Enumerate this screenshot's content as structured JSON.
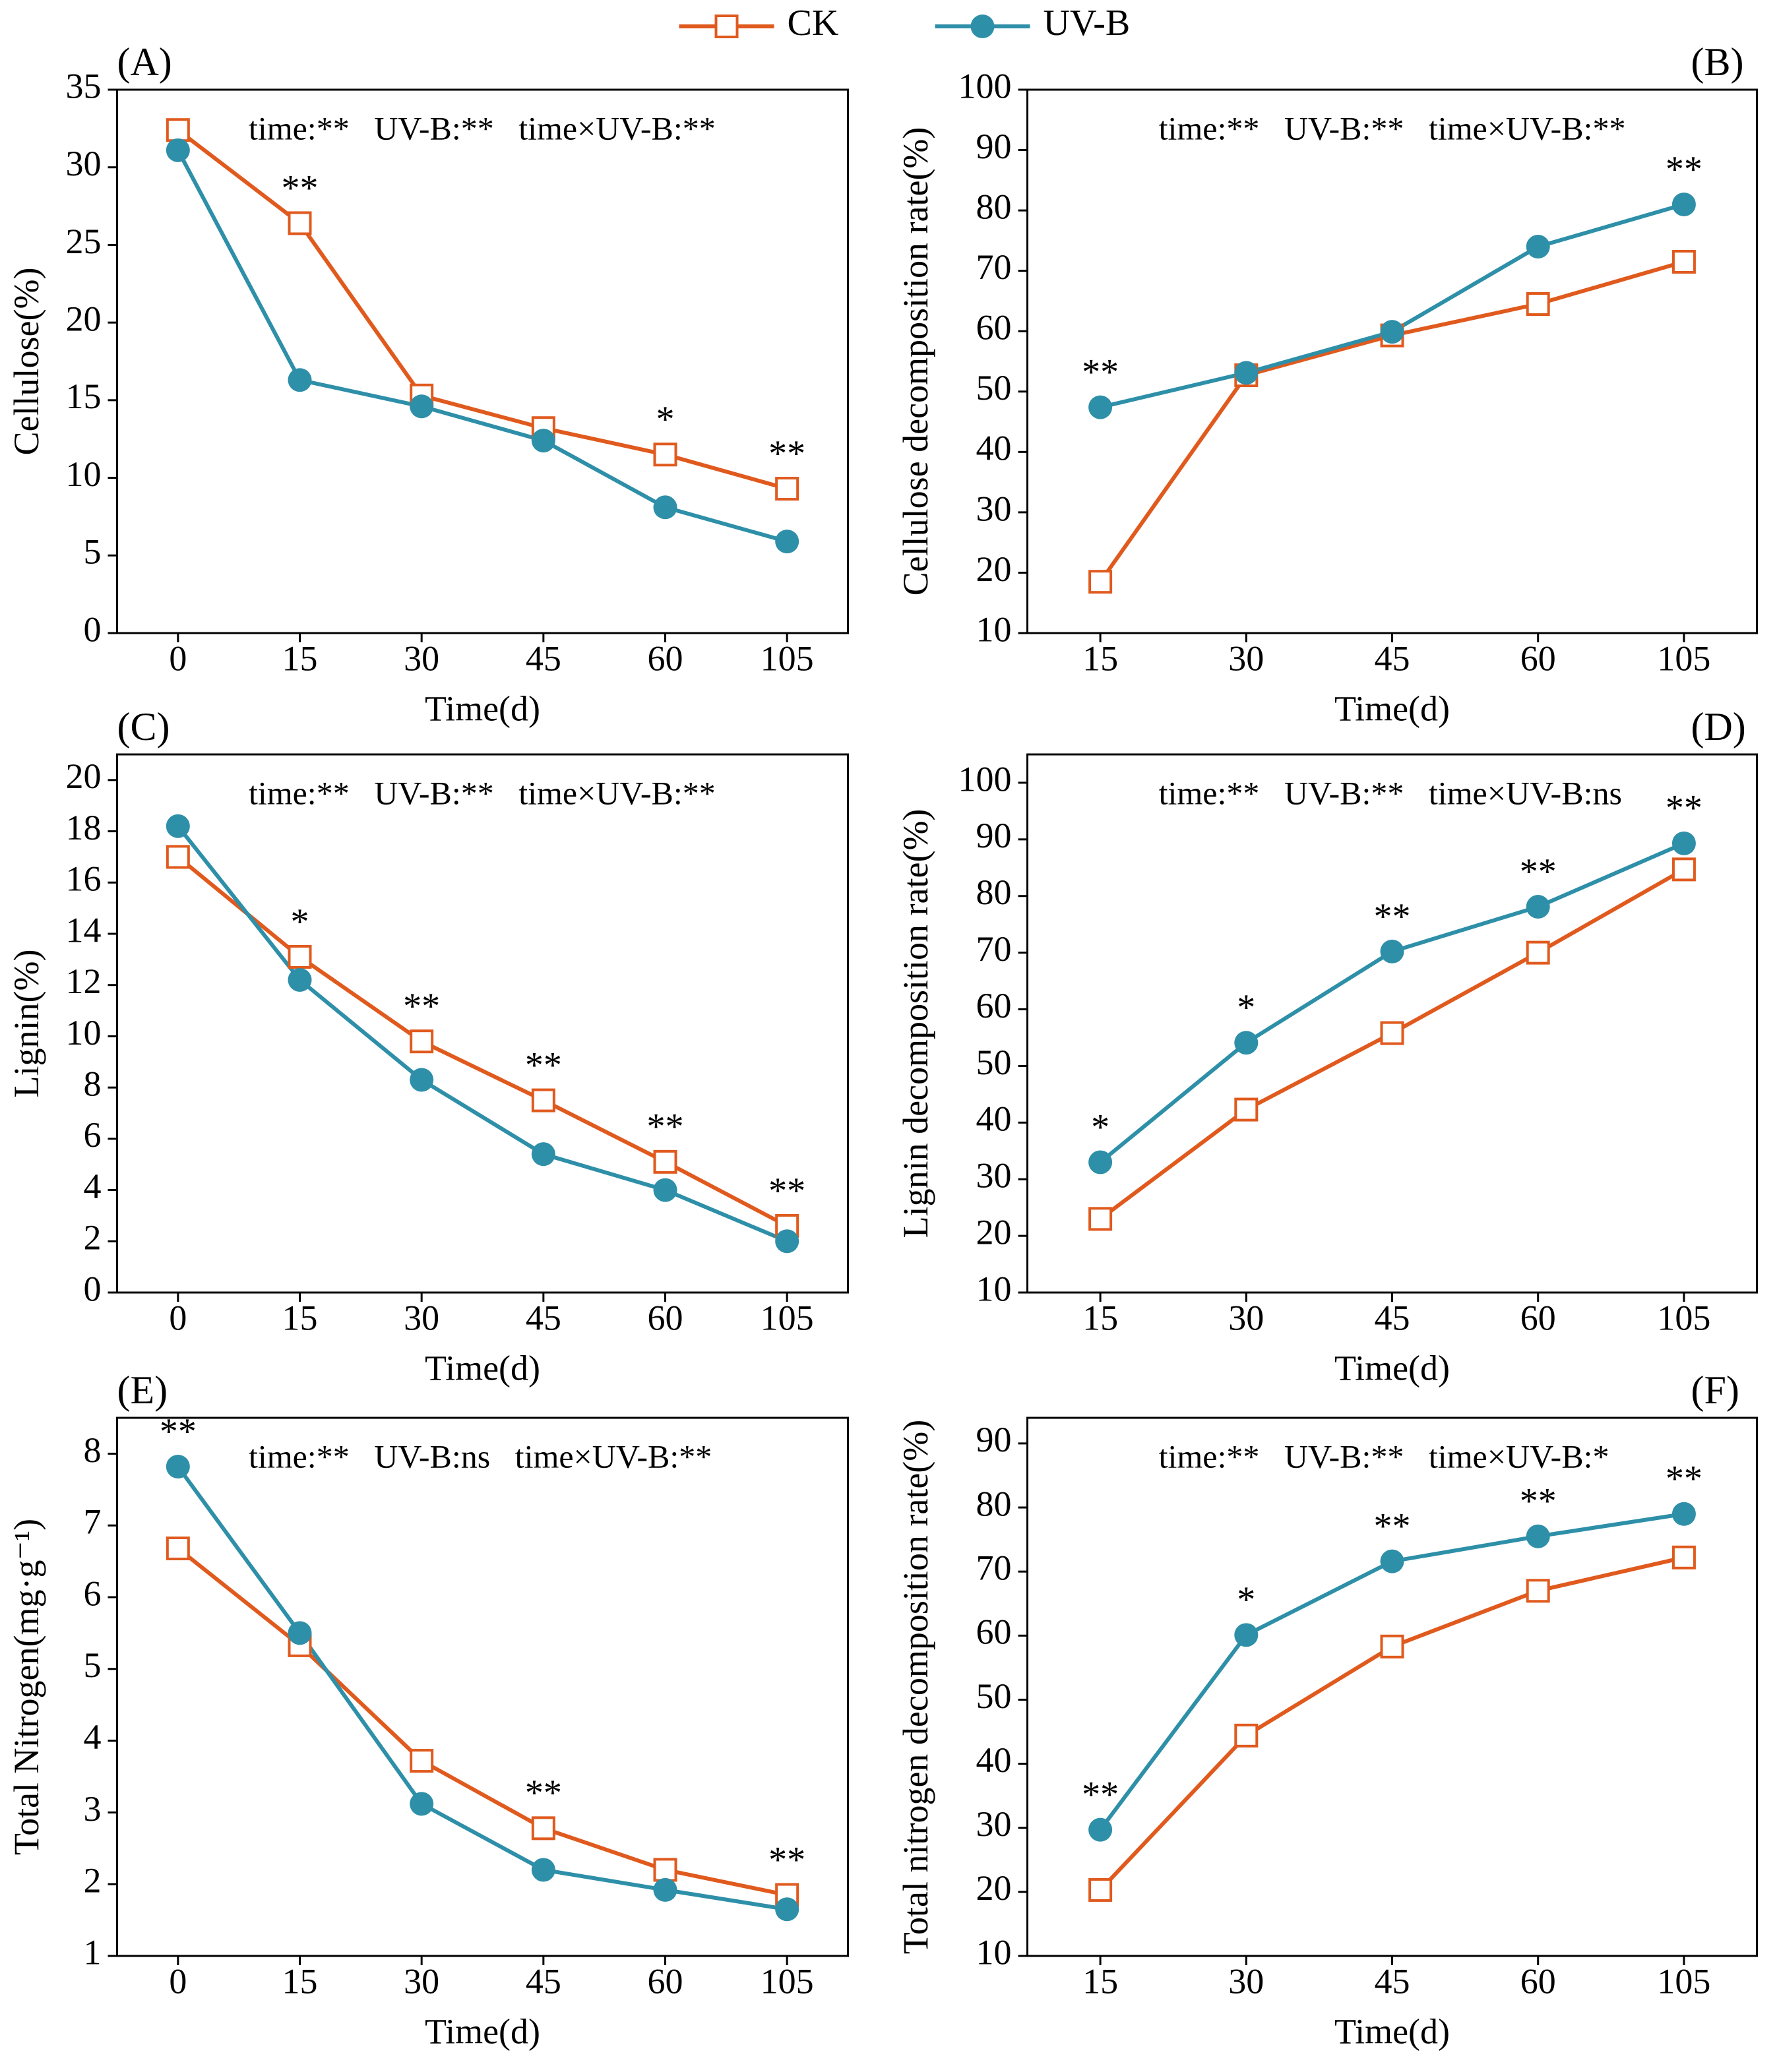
{
  "chart_data": [
    {
      "type": "line",
      "panel": "(A)",
      "stats": "time:**   UV-B:**   time×UV-B:**",
      "xlabel": "Time(d)",
      "ylabel": "Cellulose(%)",
      "categories": [
        "0",
        "15",
        "30",
        "45",
        "60",
        "105"
      ],
      "ylim": [
        0,
        35
      ],
      "yticks": [
        0,
        5,
        10,
        15,
        20,
        25,
        30,
        35
      ],
      "series": [
        {
          "name": "CK",
          "color": "#e05a1e",
          "values": [
            32.4,
            26.4,
            15.3,
            13.2,
            11.5,
            9.3
          ]
        },
        {
          "name": "UV-B",
          "color": "#2e8fa8",
          "values": [
            31.1,
            16.3,
            14.6,
            12.4,
            8.1,
            5.9
          ]
        }
      ],
      "significance": [
        null,
        "**",
        null,
        null,
        "*",
        "**"
      ]
    },
    {
      "type": "line",
      "panel": "(B)",
      "stats": "time:**   UV-B:**   time×UV-B:**",
      "xlabel": "Time(d)",
      "ylabel": "Cellulose decomposition rate(%)",
      "categories": [
        "15",
        "30",
        "45",
        "60",
        "105"
      ],
      "ylim": [
        10,
        100
      ],
      "yticks": [
        10,
        20,
        30,
        40,
        50,
        60,
        70,
        80,
        90,
        100
      ],
      "series": [
        {
          "name": "CK",
          "color": "#e05a1e",
          "values": [
            18.5,
            52.7,
            59.3,
            64.5,
            71.5
          ]
        },
        {
          "name": "UV-B",
          "color": "#2e8fa8",
          "values": [
            47.4,
            53.1,
            59.9,
            74,
            81
          ]
        }
      ],
      "significance": [
        "**",
        null,
        null,
        null,
        "**"
      ]
    },
    {
      "type": "line",
      "panel": "(C)",
      "stats": "time:**   UV-B:**   time×UV-B:**",
      "xlabel": "Time(d)",
      "ylabel": "Lignin(%)",
      "categories": [
        "0",
        "15",
        "30",
        "45",
        "60",
        "105"
      ],
      "ylim": [
        0,
        21
      ],
      "yticks": [
        0,
        2,
        4,
        6,
        8,
        10,
        12,
        14,
        16,
        18,
        20
      ],
      "series": [
        {
          "name": "CK",
          "color": "#e05a1e",
          "values": [
            17,
            13.1,
            9.8,
            7.5,
            5.1,
            2.6
          ]
        },
        {
          "name": "UV-B",
          "color": "#2e8fa8",
          "values": [
            18.2,
            12.2,
            8.3,
            5.4,
            4,
            2
          ]
        }
      ],
      "significance": [
        null,
        "*",
        "**",
        "**",
        "**",
        "**"
      ]
    },
    {
      "type": "line",
      "panel": "(D)",
      "stats": "time:**   UV-B:**   time×UV-B:ns",
      "xlabel": "Time(d)",
      "ylabel": "Lignin decomposition rate(%)",
      "categories": [
        "15",
        "30",
        "45",
        "60",
        "105"
      ],
      "ylim": [
        10,
        105
      ],
      "yticks": [
        10,
        20,
        30,
        40,
        50,
        60,
        70,
        80,
        90,
        100
      ],
      "series": [
        {
          "name": "CK",
          "color": "#e05a1e",
          "values": [
            23,
            42.3,
            55.8,
            70,
            84.7
          ]
        },
        {
          "name": "UV-B",
          "color": "#2e8fa8",
          "values": [
            33,
            54.1,
            70.2,
            78.1,
            89.3
          ]
        }
      ],
      "significance": [
        "*",
        "*",
        "**",
        "**",
        "**"
      ]
    },
    {
      "type": "line",
      "panel": "(E)",
      "stats": "time:**   UV-B:ns   time×UV-B:**",
      "xlabel": "Time(d)",
      "ylabel": "Total Nitrogen(mg·g⁻¹)",
      "categories": [
        "0",
        "15",
        "30",
        "45",
        "60",
        "105"
      ],
      "ylim": [
        1,
        8.5
      ],
      "yticks": [
        1,
        2,
        3,
        4,
        5,
        6,
        7,
        8
      ],
      "series": [
        {
          "name": "CK",
          "color": "#e05a1e",
          "values": [
            6.68,
            5.33,
            3.72,
            2.78,
            2.2,
            1.85
          ]
        },
        {
          "name": "UV-B",
          "color": "#2e8fa8",
          "values": [
            7.82,
            5.5,
            3.12,
            2.2,
            1.92,
            1.65
          ]
        }
      ],
      "significance": [
        "**",
        null,
        null,
        "**",
        null,
        "**"
      ]
    },
    {
      "type": "line",
      "panel": "(F)",
      "stats": "time:**   UV-B:**   time×UV-B:*",
      "xlabel": "Time(d)",
      "ylabel": "Total nitrogen decomposition rate(%)",
      "categories": [
        "15",
        "30",
        "45",
        "60",
        "105"
      ],
      "ylim": [
        10,
        94
      ],
      "yticks": [
        10,
        20,
        30,
        40,
        50,
        60,
        70,
        80,
        90
      ],
      "series": [
        {
          "name": "CK",
          "color": "#e05a1e",
          "values": [
            20.3,
            44.4,
            58.3,
            67,
            72.2
          ]
        },
        {
          "name": "UV-B",
          "color": "#2e8fa8",
          "values": [
            29.7,
            60.1,
            71.6,
            75.5,
            79
          ]
        }
      ],
      "significance": [
        "**",
        "*",
        "**",
        "**",
        "**"
      ]
    }
  ]
}
